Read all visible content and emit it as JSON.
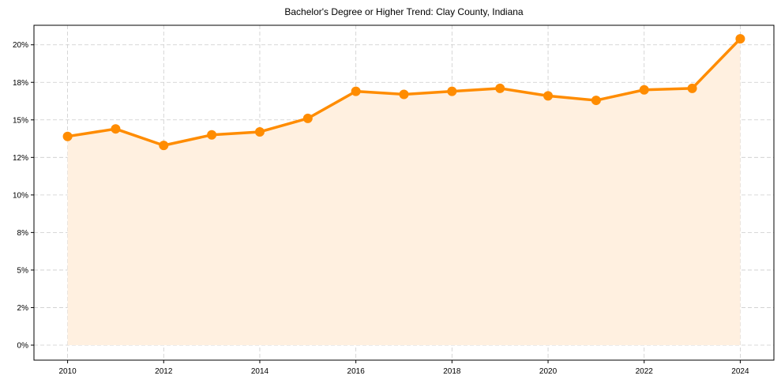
{
  "chart_data": {
    "type": "line",
    "title": "Bachelor's Degree or Higher Trend: Clay County, Indiana",
    "xlabel": "",
    "ylabel": "",
    "x": [
      2010,
      2011,
      2012,
      2013,
      2014,
      2015,
      2016,
      2017,
      2018,
      2019,
      2020,
      2021,
      2022,
      2023,
      2024
    ],
    "series": [
      {
        "name": "Bachelor's Degree or Higher (%)",
        "values": [
          13.9,
          14.4,
          13.3,
          14.0,
          14.2,
          15.1,
          16.9,
          16.7,
          16.9,
          17.1,
          16.6,
          16.3,
          17.0,
          17.1,
          20.4
        ],
        "color": "#ff8c00",
        "fill_color": "#fff0e0",
        "marker": "circle"
      }
    ],
    "xticks": [
      "2010",
      "2012",
      "2014",
      "2016",
      "2018",
      "2020",
      "2022",
      "2024"
    ],
    "yticks": [
      0,
      2.5,
      5,
      7.5,
      10,
      12.5,
      15,
      17.5,
      20
    ],
    "ytick_labels": [
      "0%",
      "2%",
      "5%",
      "8%",
      "10%",
      "12%",
      "15%",
      "18%",
      "20%"
    ],
    "xlim": [
      2009.3,
      2024.7
    ],
    "ylim": [
      -1.0,
      21.3
    ],
    "grid": true,
    "legend": null
  }
}
